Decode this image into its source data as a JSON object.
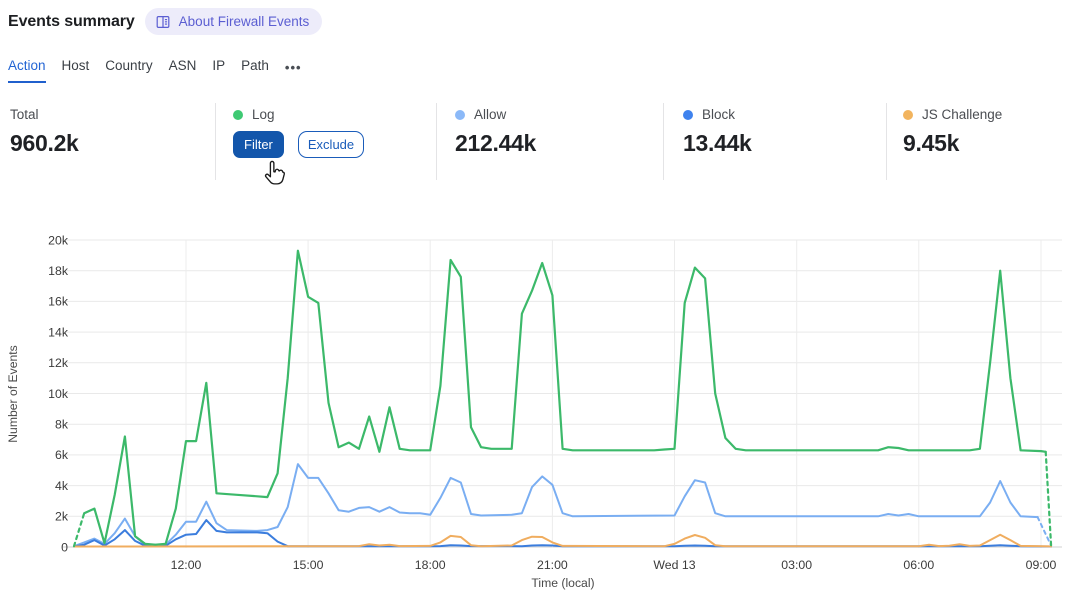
{
  "header": {
    "title": "Events summary",
    "about_badge": "About Firewall Events"
  },
  "tabs": {
    "items": [
      {
        "label": "Action",
        "active": true
      },
      {
        "label": "Host",
        "active": false
      },
      {
        "label": "Country",
        "active": false
      },
      {
        "label": "ASN",
        "active": false
      },
      {
        "label": "IP",
        "active": false
      },
      {
        "label": "Path",
        "active": false
      }
    ],
    "more_label": "•••"
  },
  "stats": {
    "total": {
      "label": "Total",
      "value": "960.2k"
    },
    "series": [
      {
        "label": "Log",
        "dot_color": "#3ec973",
        "filter_label": "Filter",
        "exclude_label": "Exclude"
      },
      {
        "label": "Allow",
        "dot_color": "#8bb9f8",
        "value": "212.44k"
      },
      {
        "label": "Block",
        "dot_color": "#3e82ee",
        "value": "13.44k"
      },
      {
        "label": "JS Challenge",
        "dot_color": "#f2b45e",
        "value": "9.45k"
      }
    ]
  },
  "chart_data": {
    "type": "line",
    "title": "",
    "xlabel": "Time (local)",
    "ylabel": "Number of Events",
    "x_unit": "minutes since first sample (15-minute interval data, ~09:15 Tue to ~09:15 Wed 13)",
    "y_unit": "thousands of events (k)",
    "ylim_k": [
      0,
      20
    ],
    "grid": true,
    "yticks": [
      {
        "v": 0,
        "label": "0"
      },
      {
        "v": 2,
        "label": "2k"
      },
      {
        "v": 4,
        "label": "4k"
      },
      {
        "v": 6,
        "label": "6k"
      },
      {
        "v": 8,
        "label": "8k"
      },
      {
        "v": 10,
        "label": "10k"
      },
      {
        "v": 12,
        "label": "12k"
      },
      {
        "v": 14,
        "label": "14k"
      },
      {
        "v": 16,
        "label": "16k"
      },
      {
        "v": 18,
        "label": "18k"
      },
      {
        "v": 20,
        "label": "20k"
      }
    ],
    "xticks": [
      {
        "t": 165,
        "label": "12:00"
      },
      {
        "t": 345,
        "label": "15:00"
      },
      {
        "t": 525,
        "label": "18:00"
      },
      {
        "t": 705,
        "label": "21:00"
      },
      {
        "t": 885,
        "label": "Wed 13"
      },
      {
        "t": 1065,
        "label": "03:00"
      },
      {
        "t": 1245,
        "label": "06:00"
      },
      {
        "t": 1425,
        "label": "09:00"
      }
    ],
    "series": [
      {
        "name": "Allow",
        "color": "#7aaef2",
        "dash_end_t": 1420,
        "points": [
          [
            0,
            0.05
          ],
          [
            15,
            0.3
          ],
          [
            30,
            0.55
          ],
          [
            45,
            0.2
          ],
          [
            60,
            0.9
          ],
          [
            75,
            1.85
          ],
          [
            90,
            0.7
          ],
          [
            105,
            0.15
          ],
          [
            135,
            0.15
          ],
          [
            150,
            0.8
          ],
          [
            165,
            1.65
          ],
          [
            180,
            1.65
          ],
          [
            195,
            2.95
          ],
          [
            210,
            1.55
          ],
          [
            225,
            1.1
          ],
          [
            270,
            1.05
          ],
          [
            285,
            1.1
          ],
          [
            300,
            1.3
          ],
          [
            315,
            2.6
          ],
          [
            330,
            5.4
          ],
          [
            345,
            4.5
          ],
          [
            360,
            4.5
          ],
          [
            375,
            3.5
          ],
          [
            390,
            2.4
          ],
          [
            405,
            2.3
          ],
          [
            420,
            2.55
          ],
          [
            435,
            2.6
          ],
          [
            450,
            2.3
          ],
          [
            465,
            2.6
          ],
          [
            480,
            2.25
          ],
          [
            495,
            2.2
          ],
          [
            510,
            2.2
          ],
          [
            525,
            2.1
          ],
          [
            540,
            3.2
          ],
          [
            555,
            4.5
          ],
          [
            570,
            4.2
          ],
          [
            585,
            2.15
          ],
          [
            600,
            2.05
          ],
          [
            645,
            2.1
          ],
          [
            660,
            2.2
          ],
          [
            675,
            3.9
          ],
          [
            690,
            4.6
          ],
          [
            705,
            4.05
          ],
          [
            720,
            2.2
          ],
          [
            735,
            2
          ],
          [
            885,
            2.05
          ],
          [
            900,
            3.3
          ],
          [
            915,
            4.35
          ],
          [
            930,
            4.2
          ],
          [
            945,
            2.2
          ],
          [
            960,
            2
          ],
          [
            1185,
            2
          ],
          [
            1200,
            2.15
          ],
          [
            1215,
            2.05
          ],
          [
            1230,
            2.15
          ],
          [
            1245,
            2
          ],
          [
            1335,
            2
          ],
          [
            1350,
            2.9
          ],
          [
            1365,
            4.3
          ],
          [
            1380,
            2.9
          ],
          [
            1395,
            2
          ],
          [
            1420,
            1.95
          ],
          [
            1440,
            0.1
          ]
        ]
      },
      {
        "name": "Block",
        "color": "#3b7ddd",
        "points": [
          [
            0,
            0.03
          ],
          [
            15,
            0.15
          ],
          [
            30,
            0.45
          ],
          [
            45,
            0.1
          ],
          [
            60,
            0.5
          ],
          [
            75,
            1.1
          ],
          [
            90,
            0.4
          ],
          [
            105,
            0.08
          ],
          [
            135,
            0.08
          ],
          [
            150,
            0.5
          ],
          [
            165,
            0.8
          ],
          [
            180,
            0.85
          ],
          [
            195,
            1.75
          ],
          [
            210,
            1.05
          ],
          [
            225,
            0.95
          ],
          [
            270,
            0.95
          ],
          [
            285,
            0.9
          ],
          [
            300,
            0.35
          ],
          [
            315,
            0.05
          ],
          [
            525,
            0.05
          ],
          [
            540,
            0.06
          ],
          [
            555,
            0.12
          ],
          [
            570,
            0.1
          ],
          [
            585,
            0.06
          ],
          [
            660,
            0.05
          ],
          [
            675,
            0.1
          ],
          [
            690,
            0.12
          ],
          [
            705,
            0.1
          ],
          [
            720,
            0.05
          ],
          [
            885,
            0.05
          ],
          [
            900,
            0.08
          ],
          [
            915,
            0.1
          ],
          [
            930,
            0.08
          ],
          [
            945,
            0.05
          ],
          [
            1335,
            0.05
          ],
          [
            1350,
            0.08
          ],
          [
            1365,
            0.12
          ],
          [
            1380,
            0.08
          ],
          [
            1395,
            0.05
          ],
          [
            1440,
            0.03
          ]
        ]
      },
      {
        "name": "JS Challenge",
        "color": "#f0ad5f",
        "points": [
          [
            0,
            0.03
          ],
          [
            195,
            0.04
          ],
          [
            300,
            0.05
          ],
          [
            405,
            0.05
          ],
          [
            420,
            0.06
          ],
          [
            435,
            0.18
          ],
          [
            450,
            0.1
          ],
          [
            465,
            0.15
          ],
          [
            480,
            0.06
          ],
          [
            525,
            0.07
          ],
          [
            540,
            0.3
          ],
          [
            555,
            0.72
          ],
          [
            570,
            0.65
          ],
          [
            585,
            0.12
          ],
          [
            600,
            0.05
          ],
          [
            645,
            0.1
          ],
          [
            660,
            0.45
          ],
          [
            675,
            0.67
          ],
          [
            690,
            0.65
          ],
          [
            705,
            0.3
          ],
          [
            720,
            0.07
          ],
          [
            870,
            0.05
          ],
          [
            885,
            0.2
          ],
          [
            900,
            0.55
          ],
          [
            915,
            0.78
          ],
          [
            930,
            0.6
          ],
          [
            945,
            0.12
          ],
          [
            960,
            0.05
          ],
          [
            1245,
            0.05
          ],
          [
            1260,
            0.15
          ],
          [
            1275,
            0.06
          ],
          [
            1290,
            0.08
          ],
          [
            1305,
            0.18
          ],
          [
            1320,
            0.07
          ],
          [
            1335,
            0.1
          ],
          [
            1350,
            0.45
          ],
          [
            1365,
            0.8
          ],
          [
            1380,
            0.45
          ],
          [
            1395,
            0.07
          ],
          [
            1440,
            0.04
          ]
        ]
      },
      {
        "name": "Log",
        "color": "#3cb96a",
        "dash_start_t": 15,
        "dash_end_t": 1432,
        "points": [
          [
            0,
            0.05
          ],
          [
            15,
            2.2
          ],
          [
            30,
            2.5
          ],
          [
            45,
            0.25
          ],
          [
            60,
            3.4
          ],
          [
            75,
            7.2
          ],
          [
            90,
            0.7
          ],
          [
            105,
            0.2
          ],
          [
            120,
            0.15
          ],
          [
            135,
            0.2
          ],
          [
            150,
            2.5
          ],
          [
            165,
            6.9
          ],
          [
            180,
            6.9
          ],
          [
            195,
            10.7
          ],
          [
            210,
            3.5
          ],
          [
            240,
            3.4
          ],
          [
            270,
            3.3
          ],
          [
            285,
            3.25
          ],
          [
            300,
            4.8
          ],
          [
            315,
            11
          ],
          [
            330,
            19.3
          ],
          [
            345,
            16.3
          ],
          [
            360,
            15.9
          ],
          [
            375,
            9.4
          ],
          [
            390,
            6.5
          ],
          [
            405,
            6.8
          ],
          [
            420,
            6.4
          ],
          [
            435,
            8.5
          ],
          [
            450,
            6.2
          ],
          [
            465,
            9.1
          ],
          [
            480,
            6.4
          ],
          [
            495,
            6.3
          ],
          [
            525,
            6.3
          ],
          [
            540,
            10.5
          ],
          [
            555,
            18.7
          ],
          [
            570,
            17.6
          ],
          [
            585,
            7.8
          ],
          [
            600,
            6.5
          ],
          [
            615,
            6.4
          ],
          [
            645,
            6.4
          ],
          [
            660,
            15.2
          ],
          [
            675,
            16.7
          ],
          [
            690,
            18.5
          ],
          [
            705,
            16.4
          ],
          [
            720,
            6.4
          ],
          [
            735,
            6.3
          ],
          [
            855,
            6.3
          ],
          [
            870,
            6.35
          ],
          [
            885,
            6.4
          ],
          [
            900,
            15.9
          ],
          [
            915,
            18.2
          ],
          [
            930,
            17.5
          ],
          [
            945,
            10
          ],
          [
            960,
            7.1
          ],
          [
            975,
            6.4
          ],
          [
            990,
            6.3
          ],
          [
            1185,
            6.3
          ],
          [
            1200,
            6.5
          ],
          [
            1215,
            6.45
          ],
          [
            1230,
            6.3
          ],
          [
            1320,
            6.3
          ],
          [
            1335,
            6.4
          ],
          [
            1350,
            12
          ],
          [
            1365,
            18
          ],
          [
            1380,
            11
          ],
          [
            1395,
            6.3
          ],
          [
            1425,
            6.25
          ],
          [
            1432,
            6.2
          ],
          [
            1440,
            0.1
          ]
        ]
      }
    ]
  }
}
